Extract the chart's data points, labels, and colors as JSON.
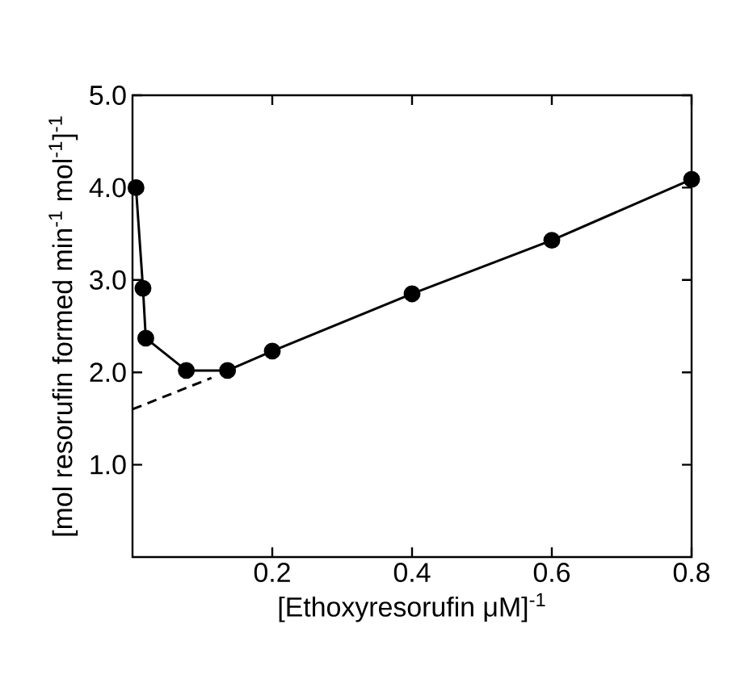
{
  "chart_data": {
    "type": "line",
    "xlabel": "[Ethoxyresorufin μM]$^{-1}$",
    "ylabel": "[mol resorufin formed min$^{-1}$ mol$^{-1}$]$^{-1}$",
    "xlim": [
      0,
      0.8
    ],
    "ylim": [
      0,
      5.0
    ],
    "xticks": [
      {
        "value": 0.2,
        "label": "0.2"
      },
      {
        "value": 0.4,
        "label": "0.4"
      },
      {
        "value": 0.6,
        "label": "0.6"
      },
      {
        "value": 0.8,
        "label": "0.8"
      }
    ],
    "yticks": [
      {
        "value": 1,
        "label": "1.0"
      },
      {
        "value": 2,
        "label": "2.0"
      },
      {
        "value": 3,
        "label": "3.0"
      },
      {
        "value": 4,
        "label": "4.0"
      },
      {
        "value": 5,
        "label": "5.0"
      }
    ],
    "series": [
      {
        "color": "#000000",
        "marker": "circle",
        "line_style": "solid",
        "x": [
          0.005,
          0.015,
          0.019,
          0.077,
          0.136,
          0.2,
          0.4,
          0.6,
          0.8
        ],
        "values": [
          4.0,
          2.91,
          2.37,
          2.02,
          2.02,
          2.23,
          2.85,
          3.43,
          4.09
        ]
      },
      {
        "color": "#000000",
        "marker": "none",
        "line_style": "dashed",
        "x": [
          0,
          0.113
        ],
        "values": [
          1.6,
          1.94
        ]
      }
    ]
  }
}
